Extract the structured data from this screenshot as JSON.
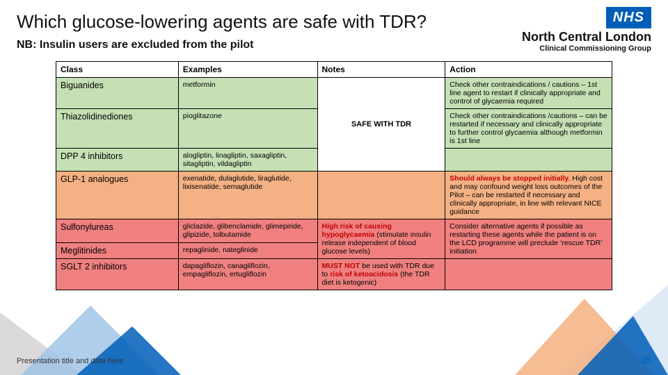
{
  "title": "Which glucose-lowering agents are safe with TDR?",
  "subtitle": "NB: Insulin users are excluded from the pilot",
  "logo": {
    "badge": "NHS",
    "main": "North Central London",
    "sub": "Clinical Commissioning Group"
  },
  "headers": {
    "c1": "Class",
    "c2": "Examples",
    "c3": "Notes",
    "c4": "Action"
  },
  "colors": {
    "green": "#c5e0b4",
    "orange": "#f4b183",
    "red": "#f08080",
    "nhs_blue": "#005eb8",
    "accent_red": "#c00000"
  },
  "notes_safe": "SAFE WITH TDR",
  "rows": [
    {
      "class": "Biguanides",
      "examples": "metformin",
      "bg": "green",
      "action_plain": "Check other contraindications / cautions – 1st line agent to restart if clinically appropriate and control of glycaemia required"
    },
    {
      "class": "Thiazolidinediones",
      "examples": "pioglitazone",
      "bg": "green",
      "action_plain": "Check other contraindications /cautions – can be restarted if necessary and clinically appropriate to further control glycaemia although metformin is 1st line"
    },
    {
      "class": "DPP 4 inhibitors",
      "examples": "alogliptin, linagliptin, saxagliptin, sitagliptin, vildagliptin",
      "bg": "green",
      "action_plain": ""
    },
    {
      "class": "GLP-1 analogues",
      "examples": "exenatide, dulaglutide, liraglutide, lixisenatide, semaglutide",
      "bg": "orange",
      "notes": "",
      "action_lead_red": "Should always be stopped initially.",
      "action_rest": " High cost and may confound weight loss outcomes of the Pilot – can be restarted if necessary and clinically appropriate, in line with relevant NICE guidance"
    },
    {
      "class": "Sulfonylureas",
      "examples": "gliclazide, glibenclamide, glimepiride, glipizide, tolbutamide",
      "bg": "red",
      "notes_lead_red": "High risk of causing hypoglycaemia",
      "notes_rest": " (stimulate insulin release independent of blood glucose levels)",
      "notes_rowspan": 2,
      "action_plain": "Consider alternative agents if possible as restarting these agents while the patient is on the LCD programme will preclude ‘rescue TDR’ initiation",
      "action_rowspan": 2
    },
    {
      "class": "Meglitinides",
      "examples": "repaglinide, nateglinide",
      "bg": "red"
    },
    {
      "class": "SGLT 2 inhibitors",
      "examples": "dapagliflozin, canagliflozin, empagliflozin, ertugliflozin",
      "bg": "red",
      "notes_pre": "",
      "notes_lead_red": "MUST NOT",
      "notes_mid": " be used with TDR due to ",
      "notes_lead_red2": "risk of ketoacidosis",
      "notes_rest2": " (the TDR diet is ketogenic)",
      "action_plain": ""
    }
  ],
  "footer": {
    "left": "Presentation title and date here",
    "page": "35"
  }
}
